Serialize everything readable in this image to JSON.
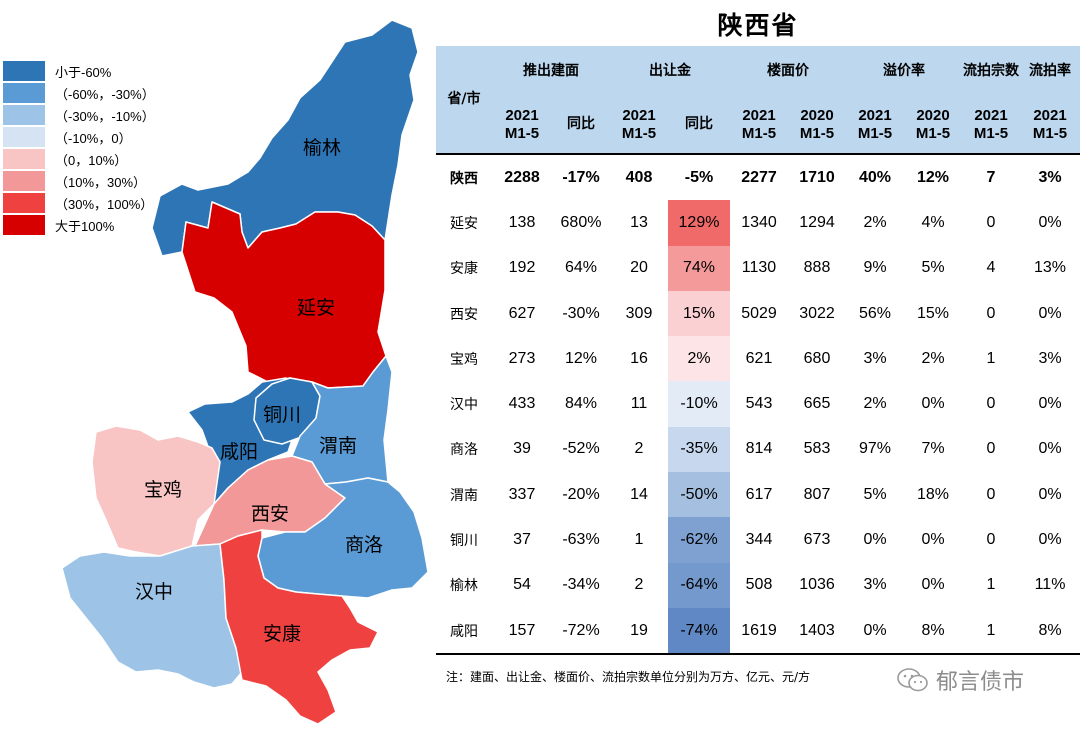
{
  "title": "陕西省",
  "legend": [
    {
      "label": "小于-60%",
      "color": "#2e75b6"
    },
    {
      "label": "（-60%，-30%）",
      "color": "#5b9bd5"
    },
    {
      "label": "（-30%，-10%）",
      "color": "#9dc3e6"
    },
    {
      "label": "（-10%，0）",
      "color": "#d6e3f3"
    },
    {
      "label": "（0，10%）",
      "color": "#f8c4c4"
    },
    {
      "label": "（10%，30%）",
      "color": "#f29898"
    },
    {
      "label": "（30%，100%）",
      "color": "#f04141"
    },
    {
      "label": "大于100%",
      "color": "#d70000"
    }
  ],
  "map": {
    "regions": [
      {
        "name": "榆林",
        "color": "#2e75b6"
      },
      {
        "name": "延安",
        "color": "#d70000"
      },
      {
        "name": "铜川",
        "color": "#2e75b6"
      },
      {
        "name": "咸阳",
        "color": "#2e75b6"
      },
      {
        "name": "渭南",
        "color": "#5b9bd5"
      },
      {
        "name": "宝鸡",
        "color": "#f8c4c4"
      },
      {
        "name": "西安",
        "color": "#f29898"
      },
      {
        "name": "商洛",
        "color": "#5b9bd5"
      },
      {
        "name": "汉中",
        "color": "#9dc3e6"
      },
      {
        "name": "安康",
        "color": "#f04141"
      }
    ]
  },
  "table": {
    "header": {
      "province": "省/市",
      "g_land": "推出建面",
      "g_fee": "出让金",
      "g_price": "楼面价",
      "g_premium": "溢价率",
      "g_failed_count": "流拍宗数",
      "g_failed_rate": "流拍率",
      "y2021": "2021 M1-5",
      "y2020": "2020 M1-5",
      "yoy": "同比"
    },
    "rows": [
      {
        "city": "陕西",
        "area": "2288",
        "area_yoy": "-17%",
        "fee": "408",
        "fee_yoy": "-5%",
        "fee_yoy_color": "#ffffff",
        "price2021": "2277",
        "price2020": "1710",
        "prem2021": "40%",
        "prem2020": "12%",
        "failed": "7",
        "failed_rate": "3%"
      },
      {
        "city": "延安",
        "area": "138",
        "area_yoy": "680%",
        "fee": "13",
        "fee_yoy": "129%",
        "fee_yoy_color": "#f06a6a",
        "price2021": "1340",
        "price2020": "1294",
        "prem2021": "2%",
        "prem2020": "4%",
        "failed": "0",
        "failed_rate": "0%"
      },
      {
        "city": "安康",
        "area": "192",
        "area_yoy": "64%",
        "fee": "20",
        "fee_yoy": "74%",
        "fee_yoy_color": "#f59a9a",
        "price2021": "1130",
        "price2020": "888",
        "prem2021": "9%",
        "prem2020": "5%",
        "failed": "4",
        "failed_rate": "13%"
      },
      {
        "city": "西安",
        "area": "627",
        "area_yoy": "-30%",
        "fee": "309",
        "fee_yoy": "15%",
        "fee_yoy_color": "#fbd0d3",
        "price2021": "5029",
        "price2020": "3022",
        "prem2021": "56%",
        "prem2020": "15%",
        "failed": "0",
        "failed_rate": "0%"
      },
      {
        "city": "宝鸡",
        "area": "273",
        "area_yoy": "12%",
        "fee": "16",
        "fee_yoy": "2%",
        "fee_yoy_color": "#fde4e6",
        "price2021": "621",
        "price2020": "680",
        "prem2021": "3%",
        "prem2020": "2%",
        "failed": "1",
        "failed_rate": "3%"
      },
      {
        "city": "汉中",
        "area": "433",
        "area_yoy": "84%",
        "fee": "11",
        "fee_yoy": "-10%",
        "fee_yoy_color": "#e3ebf6",
        "price2021": "543",
        "price2020": "665",
        "prem2021": "2%",
        "prem2020": "0%",
        "failed": "0",
        "failed_rate": "0%"
      },
      {
        "city": "商洛",
        "area": "39",
        "area_yoy": "-52%",
        "fee": "2",
        "fee_yoy": "-35%",
        "fee_yoy_color": "#c6d7ee",
        "price2021": "814",
        "price2020": "583",
        "prem2021": "97%",
        "prem2020": "7%",
        "failed": "0",
        "failed_rate": "0%"
      },
      {
        "city": "渭南",
        "area": "337",
        "area_yoy": "-20%",
        "fee": "14",
        "fee_yoy": "-50%",
        "fee_yoy_color": "#a5bfe1",
        "price2021": "617",
        "price2020": "807",
        "prem2021": "5%",
        "prem2020": "18%",
        "failed": "0",
        "failed_rate": "0%"
      },
      {
        "city": "铜川",
        "area": "37",
        "area_yoy": "-63%",
        "fee": "1",
        "fee_yoy": "-62%",
        "fee_yoy_color": "#7ea1d2",
        "price2021": "344",
        "price2020": "673",
        "prem2021": "0%",
        "prem2020": "0%",
        "failed": "0",
        "failed_rate": "0%"
      },
      {
        "city": "榆林",
        "area": "54",
        "area_yoy": "-34%",
        "fee": "2",
        "fee_yoy": "-64%",
        "fee_yoy_color": "#7399cd",
        "price2021": "508",
        "price2020": "1036",
        "prem2021": "3%",
        "prem2020": "0%",
        "failed": "1",
        "failed_rate": "11%"
      },
      {
        "city": "咸阳",
        "area": "157",
        "area_yoy": "-72%",
        "fee": "19",
        "fee_yoy": "-74%",
        "fee_yoy_color": "#5f88c4",
        "price2021": "1619",
        "price2020": "1403",
        "prem2021": "0%",
        "prem2020": "8%",
        "failed": "1",
        "failed_rate": "8%"
      }
    ]
  },
  "note": "注：建面、出让金、楼面价、流拍宗数单位分别为万方、亿元、元/方",
  "watermark": "郁言债市",
  "chart_data": {
    "type": "table",
    "title": "陕西省",
    "columns": [
      "省/市",
      "推出建面 2021 M1-5",
      "推出建面 同比",
      "出让金 2021 M1-5",
      "出让金 同比",
      "楼面价 2021 M1-5",
      "楼面价 2020 M1-5",
      "溢价率 2021 M1-5",
      "溢价率 2020 M1-5",
      "流拍宗数 2021 M1-5",
      "流拍率 2021 M1-5"
    ],
    "rows": [
      [
        "陕西",
        2288,
        "-17%",
        408,
        "-5%",
        2277,
        1710,
        "40%",
        "12%",
        7,
        "3%"
      ],
      [
        "延安",
        138,
        "680%",
        13,
        "129%",
        1340,
        1294,
        "2%",
        "4%",
        0,
        "0%"
      ],
      [
        "安康",
        192,
        "64%",
        20,
        "74%",
        1130,
        888,
        "9%",
        "5%",
        4,
        "13%"
      ],
      [
        "西安",
        627,
        "-30%",
        309,
        "15%",
        5029,
        3022,
        "56%",
        "15%",
        0,
        "0%"
      ],
      [
        "宝鸡",
        273,
        "12%",
        16,
        "2%",
        621,
        680,
        "3%",
        "2%",
        1,
        "3%"
      ],
      [
        "汉中",
        433,
        "84%",
        11,
        "-10%",
        543,
        665,
        "2%",
        "0%",
        0,
        "0%"
      ],
      [
        "商洛",
        39,
        "-52%",
        2,
        "-35%",
        814,
        583,
        "97%",
        "7%",
        0,
        "0%"
      ],
      [
        "渭南",
        337,
        "-20%",
        14,
        "-50%",
        617,
        807,
        "5%",
        "18%",
        0,
        "0%"
      ],
      [
        "铜川",
        37,
        "-63%",
        1,
        "-62%",
        344,
        673,
        "0%",
        "0%",
        0,
        "0%"
      ],
      [
        "榆林",
        54,
        "-34%",
        2,
        "-64%",
        508,
        1036,
        "3%",
        "0%",
        1,
        "11%"
      ],
      [
        "咸阳",
        157,
        "-72%",
        19,
        "-74%",
        1619,
        1403,
        "0%",
        "8%",
        1,
        "8%"
      ]
    ]
  }
}
